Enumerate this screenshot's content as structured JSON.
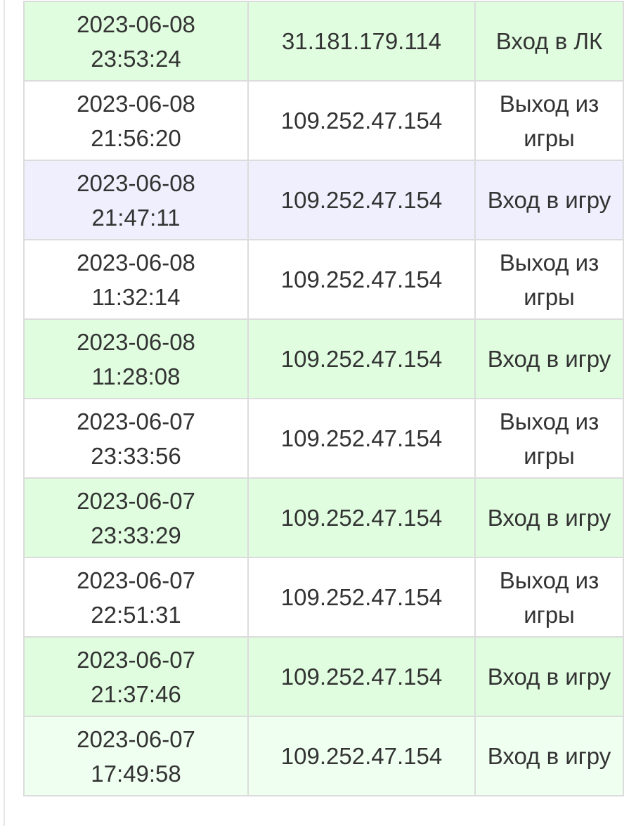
{
  "colors": {
    "green": "#e0fde0",
    "white": "#ffffff",
    "lavender": "#efeffd",
    "light_green": "#effff0",
    "border": "#dcdcdc",
    "text": "#333333"
  },
  "rows": [
    {
      "date": "2023-06-08",
      "time": "23:53:24",
      "ip": "31.181.179.114",
      "action": "Вход в ЛК",
      "style": "green"
    },
    {
      "date": "2023-06-08",
      "time": "21:56:20",
      "ip": "109.252.47.154",
      "action": "Выход из игры",
      "style": "white"
    },
    {
      "date": "2023-06-08",
      "time": "21:47:11",
      "ip": "109.252.47.154",
      "action": "Вход в игру",
      "style": "lav"
    },
    {
      "date": "2023-06-08",
      "time": "11:32:14",
      "ip": "109.252.47.154",
      "action": "Выход из игры",
      "style": "white"
    },
    {
      "date": "2023-06-08",
      "time": "11:28:08",
      "ip": "109.252.47.154",
      "action": "Вход в игру",
      "style": "green"
    },
    {
      "date": "2023-06-07",
      "time": "23:33:56",
      "ip": "109.252.47.154",
      "action": "Выход из игры",
      "style": "white"
    },
    {
      "date": "2023-06-07",
      "time": "23:33:29",
      "ip": "109.252.47.154",
      "action": "Вход в игру",
      "style": "green"
    },
    {
      "date": "2023-06-07",
      "time": "22:51:31",
      "ip": "109.252.47.154",
      "action": "Выход из игры",
      "style": "white"
    },
    {
      "date": "2023-06-07",
      "time": "21:37:46",
      "ip": "109.252.47.154",
      "action": "Вход в игру",
      "style": "green"
    },
    {
      "date": "2023-06-07",
      "time": "17:49:58",
      "ip": "109.252.47.154",
      "action": "Вход в игру",
      "style": "light"
    }
  ]
}
